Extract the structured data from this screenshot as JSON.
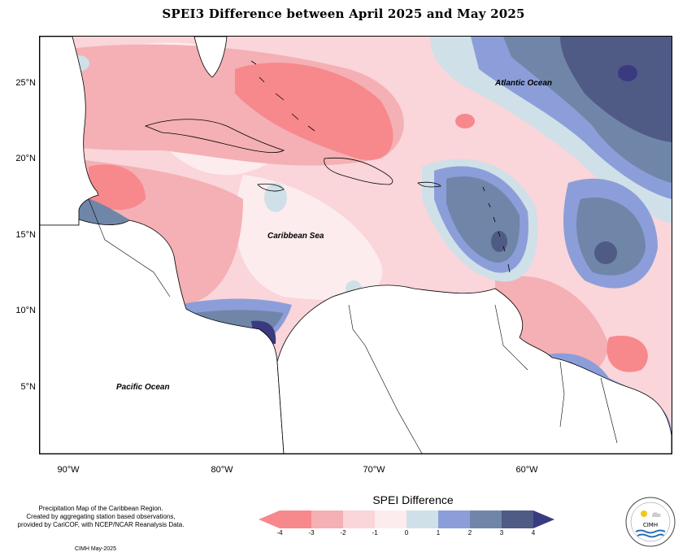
{
  "title": "SPEI3 Difference between April 2025 and May 2025",
  "map": {
    "lat_labels": [
      "25°N",
      "20°N",
      "15°N",
      "10°N",
      "5°N"
    ],
    "lon_labels": [
      "90°W",
      "80°W",
      "70°W",
      "60°W"
    ],
    "ocean_labels": {
      "atlantic": "Atlantic Ocean",
      "caribbean": "Caribbean Sea",
      "pacific": "Pacific Ocean"
    }
  },
  "legend": {
    "title": "SPEI Difference",
    "ticks": [
      "-4",
      "-3",
      "-2",
      "-1",
      "0",
      "1",
      "2",
      "3",
      "4"
    ],
    "colors": [
      "#f7888c",
      "#f4b0b4",
      "#fad5da",
      "#fdecee",
      "#cfe0e8",
      "#8c9ed9",
      "#6f86a8",
      "#4f5a85",
      "#3a3a80"
    ]
  },
  "credit": {
    "line1": "Precipitation Map of the Caribbean Region.",
    "line2": "Created by aggregating station based observations,",
    "line3": "provided by CariCOF, with NCEP/NCAR Reanalysis Data."
  },
  "footnote": "CIMH May-2025",
  "logo": {
    "text": "CIMH"
  }
}
